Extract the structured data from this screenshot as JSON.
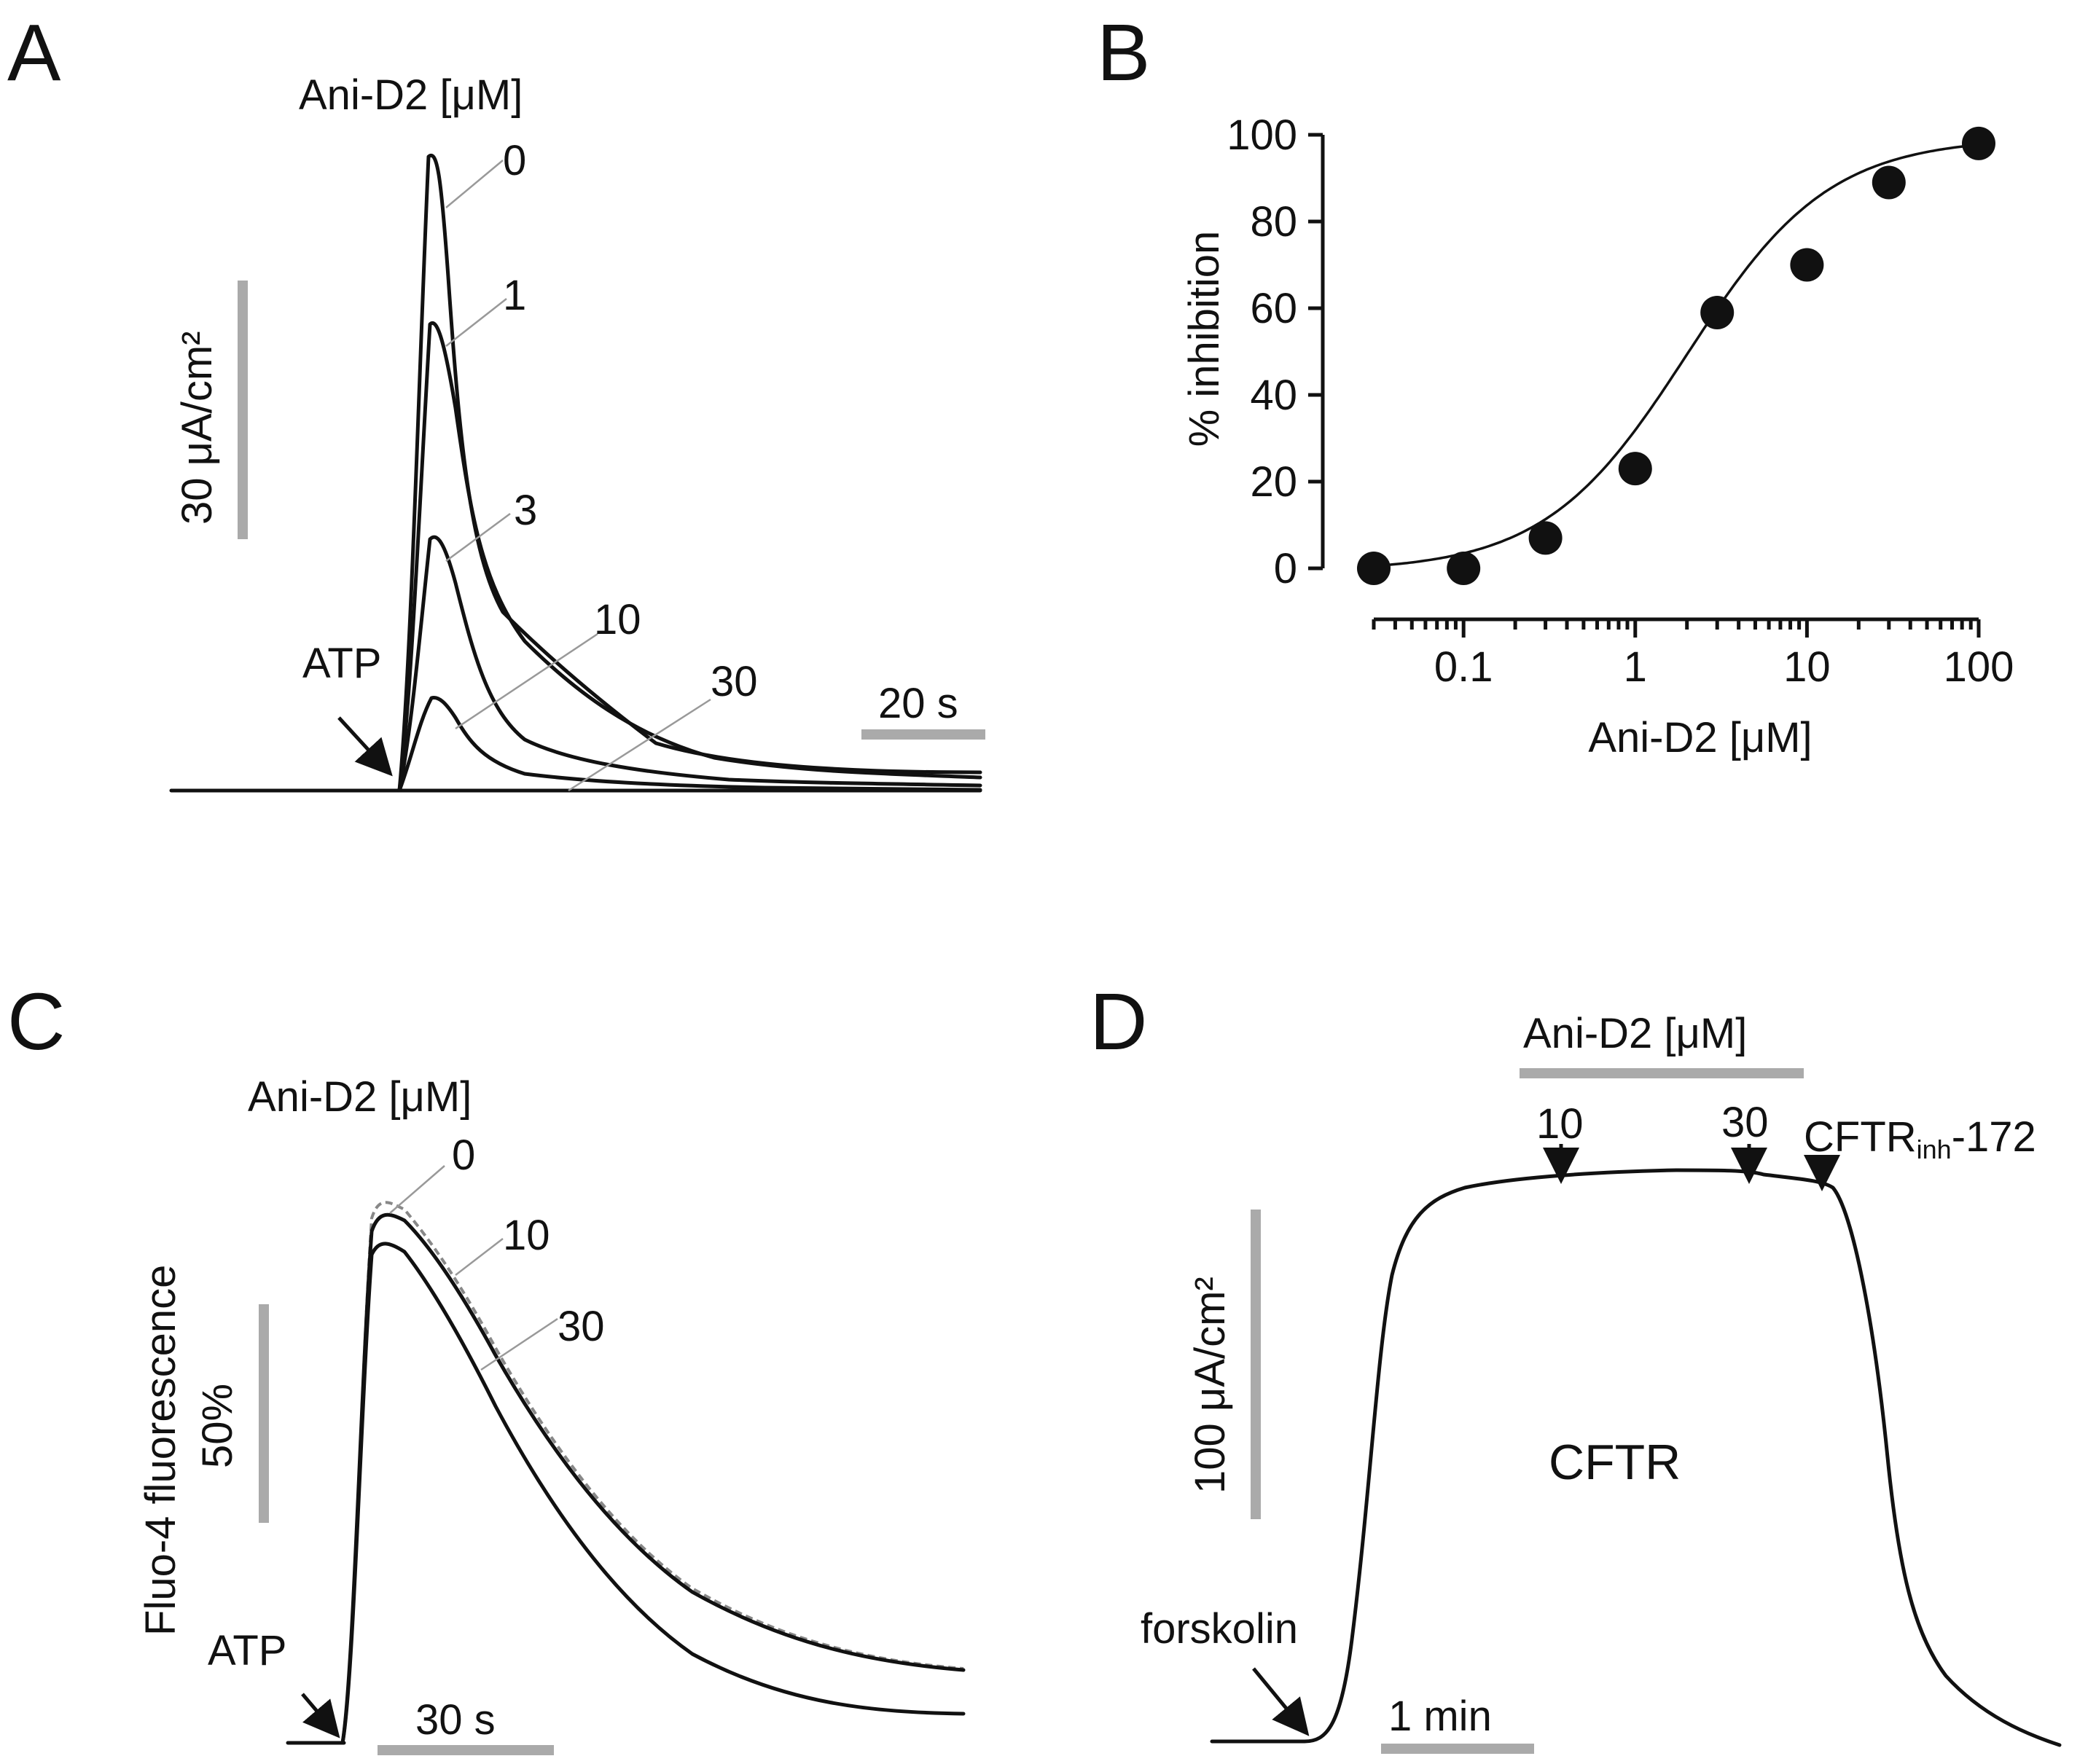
{
  "colors": {
    "trace": "#111111",
    "scalebar": "#aaaaaa",
    "leader": "#999999",
    "dashed": "#888888"
  },
  "panelA": {
    "letter": "A",
    "header": "Ani-D2 [μM]",
    "concentration_labels": [
      "0",
      "1",
      "3",
      "10",
      "30"
    ],
    "scale_y": "30 μA/cm²",
    "scale_x": "20 s",
    "stimulus": "ATP"
  },
  "chart_data": [
    {
      "panel": "B",
      "type": "scatter",
      "letter": "B",
      "title": "",
      "xlabel": "Ani-D2 [μM]",
      "ylabel": "% inhibition",
      "xscale": "log",
      "xlim": [
        0.03,
        100
      ],
      "ylim": [
        0,
        100
      ],
      "xticks": [
        "0.1",
        "1",
        "10",
        "100"
      ],
      "yticks": [
        "0",
        "20",
        "40",
        "60",
        "80",
        "100"
      ],
      "series": [
        {
          "name": "data",
          "x": [
            0.03,
            0.1,
            0.3,
            1,
            3,
            10,
            30,
            100
          ],
          "y": [
            0,
            0,
            7,
            23,
            59,
            70,
            89,
            98
          ]
        }
      ],
      "fit": {
        "type": "hill",
        "ic50": 2,
        "hill": 1.05,
        "min": 0,
        "max": 100
      }
    },
    {
      "panel": "A",
      "type": "line",
      "description_units": "short-circuit current",
      "series": [
        {
          "name": "0",
          "peak": 95
        },
        {
          "name": "1",
          "peak": 70
        },
        {
          "name": "3",
          "peak": 38
        },
        {
          "name": "10",
          "peak": 14
        },
        {
          "name": "30",
          "peak": 0
        }
      ]
    }
  ],
  "panelC": {
    "letter": "C",
    "header": "Ani-D2 [μM]",
    "concentration_labels": [
      "0",
      "10",
      "30"
    ],
    "ylabel": "Fluo-4 fluorescence",
    "scale_y": "50%",
    "scale_x": "30 s",
    "stimulus": "ATP"
  },
  "panelD": {
    "letter": "D",
    "header": "Ani-D2 [μM]",
    "dose_labels": [
      "10",
      "30"
    ],
    "inhibitor_main": "CFTR",
    "inhibitor_sub": "inh",
    "inhibitor_tail": "-172",
    "channel": "CFTR",
    "scale_y": "100 μA/cm²",
    "scale_x": "1 min",
    "stimulus": "forskolin"
  }
}
